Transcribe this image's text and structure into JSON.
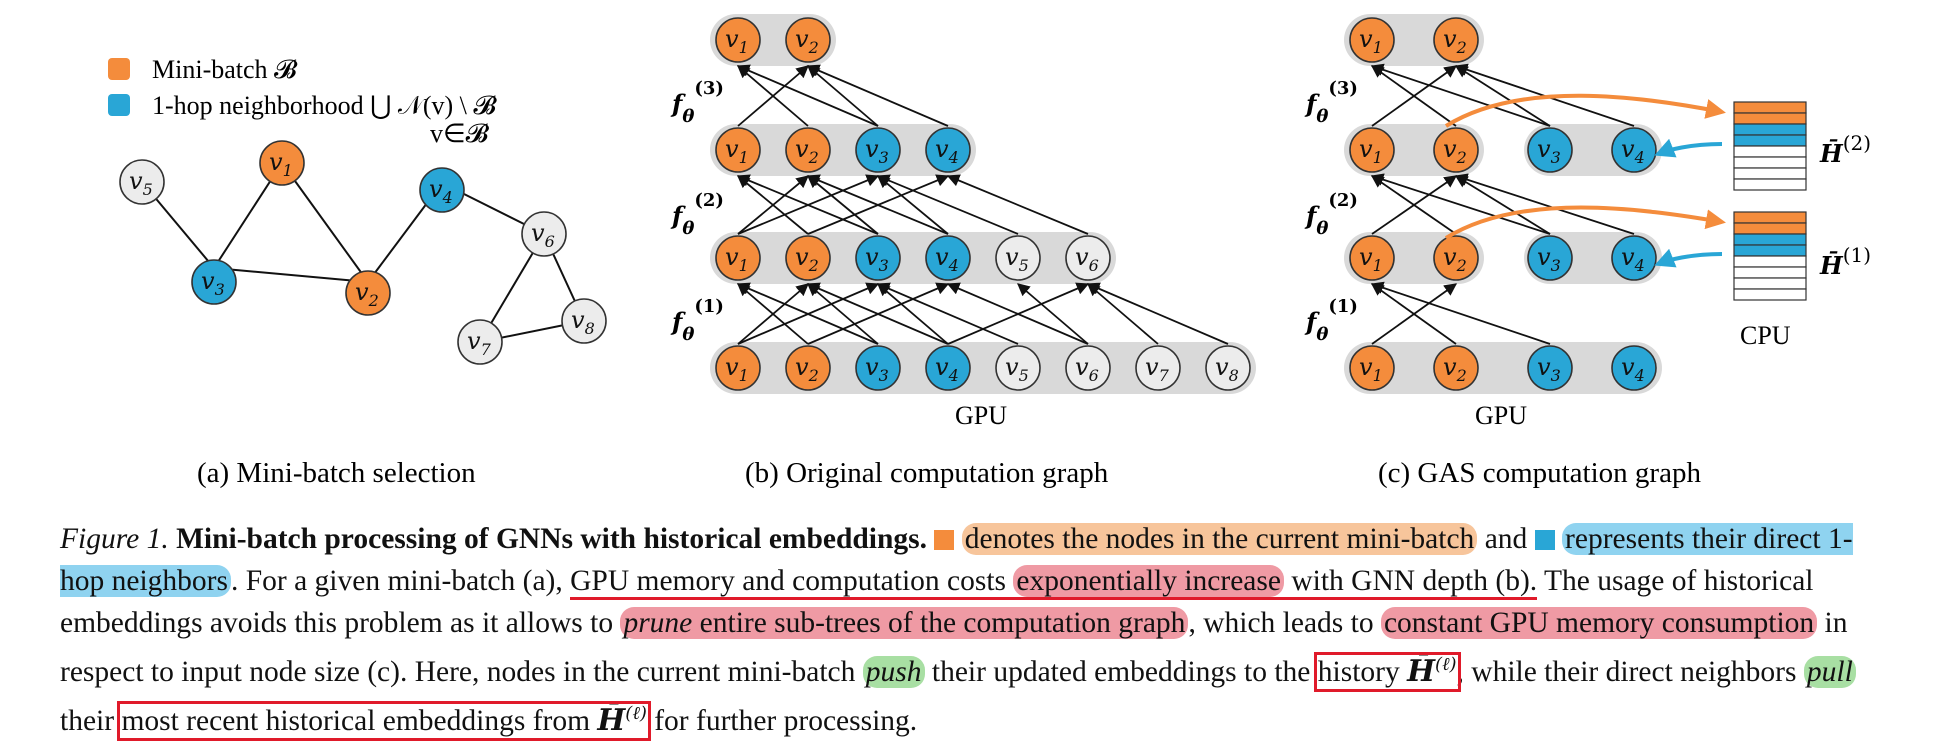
{
  "legend": {
    "minibatch_label": "Mini-batch 𝓑",
    "neighborhood_label": "1-hop neighborhood ⋃ 𝒩(v) \\ 𝓑",
    "neighborhood_subscript": "v∈𝓑"
  },
  "colors": {
    "orange": "#f48c3c",
    "blue": "#29a6d6",
    "grey": "#ececec",
    "band": "#d9d9d9",
    "red": "#e01a2a"
  },
  "panel_a": {
    "nodes": [
      "v1",
      "v2",
      "v3",
      "v4",
      "v5",
      "v6",
      "v7",
      "v8"
    ],
    "caption": "(a) Mini-batch selection"
  },
  "panel_b": {
    "layers": [
      "f_θ^(1)",
      "f_θ^(2)",
      "f_θ^(3)"
    ],
    "device": "GPU",
    "caption": "(b) Original computation graph"
  },
  "panel_c": {
    "layers": [
      "f_θ^(1)",
      "f_θ^(2)",
      "f_θ^(3)"
    ],
    "device": "GPU",
    "cpu_label": "CPU",
    "history_2": "H̄^(2)",
    "history_1": "H̄^(1)",
    "caption": "(c) GAS computation graph"
  },
  "caption": {
    "fig_label": "Figure 1.",
    "title": "Mini-batch processing of GNNs with historical embeddings.",
    "p1": "denotes the nodes in the current mini-batch",
    "p2": "and",
    "p3": "represents their direct 1-hop neighbors",
    "p4": ". For a given mini-batch (a),",
    "p5": "GPU memory and computation costs",
    "p6": "exponentially increase",
    "p7": "with GNN depth (b).",
    "p8": "The usage of historical embeddings avoids this problem as it allows to",
    "p9": "prune",
    "p10": "entire sub-trees of the computation graph",
    "p11": ", which leads to",
    "p12": "constant GPU memory consumption",
    "p13": "in respect to input node size (c). Here, nodes in the current mini-batch",
    "p14": "push",
    "p15": "their updated embeddings to the",
    "p16": "history",
    "p17": ", while their direct neighbors",
    "p18": "pull",
    "p19": "their",
    "p20": "most recent historical embeddings from",
    "p21": "for further processing."
  }
}
